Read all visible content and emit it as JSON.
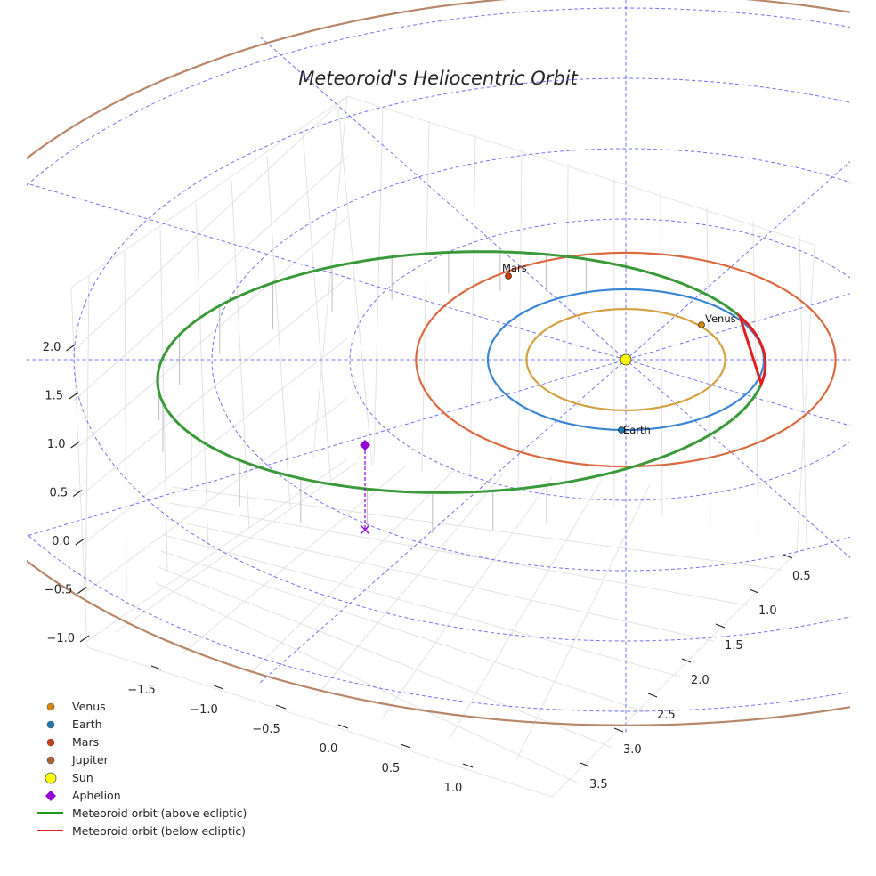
{
  "chart_data": {
    "type": "3d-line",
    "title": "Meteoroid's Heliocentric Orbit",
    "axes": {
      "x_ticks": [
        -1.5,
        -1.0,
        -0.5,
        0.0,
        0.5,
        1.0
      ],
      "x_tick_labels": [
        "−1.5",
        "−1.0",
        "−0.5",
        "0.0",
        "0.5",
        "1.0"
      ],
      "y_ticks": [
        0.5,
        1.0,
        1.5,
        2.0,
        2.5,
        3.0,
        3.5
      ],
      "y_tick_labels": [
        "0.5",
        "1.0",
        "1.5",
        "2.0",
        "2.5",
        "3.0",
        "3.5"
      ],
      "z_ticks": [
        -1.0,
        -0.5,
        0.0,
        0.5,
        1.0,
        1.5,
        2.0
      ],
      "z_tick_labels": [
        "−1.0",
        "−0.5",
        "0.0",
        "0.5",
        "1.0",
        "1.5",
        "2.0"
      ]
    },
    "ecliptic_grid": {
      "radii_au": [
        1,
        2,
        3,
        4,
        5
      ],
      "spokes_deg": [
        0,
        30,
        60,
        90,
        120,
        150
      ],
      "color": "#5b5bf0"
    },
    "planet_orbits": [
      {
        "name": "Venus",
        "semi_major_au": 0.72,
        "color": "#d4a040"
      },
      {
        "name": "Earth",
        "semi_major_au": 1.0,
        "color": "#3a86d4"
      },
      {
        "name": "Mars",
        "semi_major_au": 1.52,
        "color": "#dc6a40"
      },
      {
        "name": "Jupiter",
        "semi_major_au": 5.2,
        "color": "#b8876a"
      }
    ],
    "planets": [
      {
        "name": "Venus",
        "color": "#d4880c",
        "label": "Venus"
      },
      {
        "name": "Earth",
        "color": "#1f77b4",
        "label": "Earth"
      },
      {
        "name": "Mars",
        "color": "#d43a0c",
        "label": "Mars"
      }
    ],
    "meteoroid_orbit": {
      "semi_major_axis_au": 2.21,
      "eccentricity": 0.545,
      "inclination_deg": 2,
      "aphelion_au": 3.42,
      "perihelion_au": 1.0,
      "above_color": "#3a9a3a",
      "below_color": "#e02020"
    },
    "aphelion_marker": {
      "color": "#9400d3"
    },
    "legend": {
      "position": "lower-left",
      "entries": [
        {
          "label": "Venus",
          "marker": "circle",
          "color": "#d4880c"
        },
        {
          "label": "Earth",
          "marker": "circle",
          "color": "#1f77b4"
        },
        {
          "label": "Mars",
          "marker": "circle",
          "color": "#c8401a"
        },
        {
          "label": "Jupiter",
          "marker": "circle",
          "color": "#b06030"
        },
        {
          "label": "Sun",
          "marker": "circle-large",
          "color": "#ffff00"
        },
        {
          "label": "Aphelion",
          "marker": "diamond",
          "color": "#9400d3"
        },
        {
          "label": "Meteoroid orbit (above ecliptic)",
          "marker": "line",
          "color": "#1a9a1a"
        },
        {
          "label": "Meteoroid orbit (below ecliptic)",
          "marker": "line",
          "color": "#e02020"
        }
      ]
    }
  }
}
